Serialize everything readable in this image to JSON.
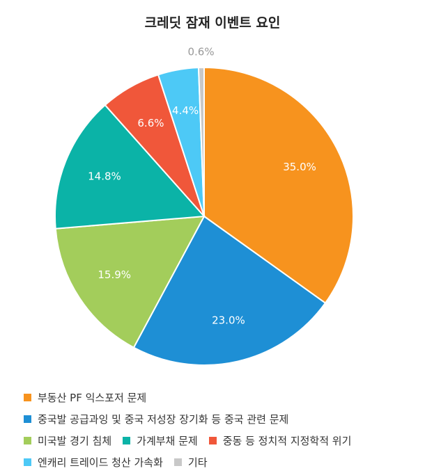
{
  "chart_data": {
    "type": "pie",
    "title": "크레딧 잠재 이벤트 요인",
    "categories": [
      "부동산 PF 익스포저 문제",
      "중국발 공급과잉 및 중국 저성장 장기화 등 중국 관련 문제",
      "미국발 경기 침체",
      "가계부채 문제",
      "중동 등 정치적 지정학적 위기",
      "엔캐리 트레이드 청산 가속화",
      "기타"
    ],
    "values": [
      35.0,
      23.0,
      15.9,
      14.8,
      6.6,
      4.4,
      0.6
    ],
    "value_labels": [
      "35.0%",
      "23.0%",
      "15.9%",
      "14.8%",
      "6.6%",
      "4.4%",
      "0.6%"
    ],
    "colors": [
      "#F7931E",
      "#1E8FD5",
      "#A3CD5B",
      "#0BB3A7",
      "#F0573A",
      "#4DC9F6",
      "#C8C8C8"
    ],
    "legend_position": "bottom",
    "start_angle": "12 o'clock, clockwise"
  }
}
